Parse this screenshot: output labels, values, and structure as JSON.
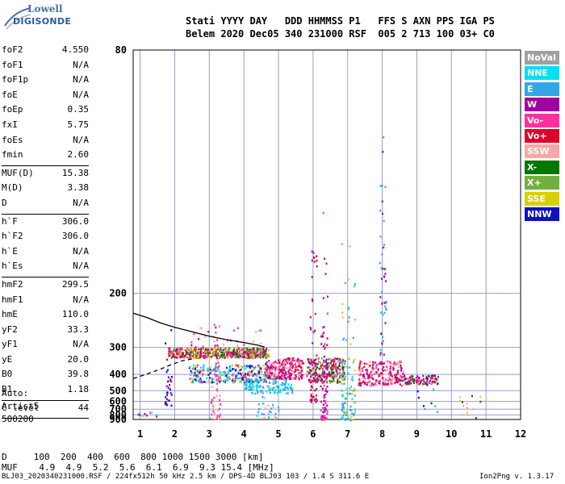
{
  "logo": {
    "line1": "Lowell",
    "line2": "DIGISONDE"
  },
  "header": {
    "labels": "Stati YYYY DAY   DDD HHMMSS P1   FFS S AXN PPS IGA PS",
    "values": "Belem 2020 Dec05 340 231000 RSF  005 2 713 100 03+ C0"
  },
  "params_group1": [
    {
      "name": "foF2",
      "value": "4.550"
    },
    {
      "name": "foF1",
      "value": "N/A"
    },
    {
      "name": "foF1p",
      "value": "N/A"
    },
    {
      "name": "foE",
      "value": "N/A"
    },
    {
      "name": "foEp",
      "value": "0.35"
    },
    {
      "name": "fxI",
      "value": "5.75"
    },
    {
      "name": "foEs",
      "value": "N/A"
    },
    {
      "name": "fmin",
      "value": "2.60"
    }
  ],
  "params_group2": [
    {
      "name": "MUF(D)",
      "value": "15.38"
    },
    {
      "name": "M(D)",
      "value": "3.38"
    },
    {
      "name": "D",
      "value": "N/A"
    }
  ],
  "params_group3": [
    {
      "name": "h`F",
      "value": "306.0"
    },
    {
      "name": "h`F2",
      "value": "306.0"
    },
    {
      "name": "h`E",
      "value": "N/A"
    },
    {
      "name": "h`Es",
      "value": "N/A"
    }
  ],
  "params_group4": [
    {
      "name": "hmF2",
      "value": "299.5"
    },
    {
      "name": "hmF1",
      "value": "N/A"
    },
    {
      "name": "hmE",
      "value": "110.0"
    },
    {
      "name": "yF2",
      "value": "33.3"
    },
    {
      "name": "yF1",
      "value": "N/A"
    },
    {
      "name": "yE",
      "value": "20.0"
    },
    {
      "name": "B0",
      "value": "39.8"
    },
    {
      "name": "B1",
      "value": "1.18"
    }
  ],
  "params_group5": [
    {
      "name": "C-level",
      "value": "44"
    }
  ],
  "auto_text": "Auto:\nArtist5\n500200",
  "legend": [
    {
      "label": "NoVal",
      "color": "#a0a0a0"
    },
    {
      "label": "NNE",
      "color": "#00e0f0"
    },
    {
      "label": "E",
      "color": "#30a8e8"
    },
    {
      "label": "W",
      "color": "#a000a0"
    },
    {
      "label": "Vo-",
      "color": "#ff30a0"
    },
    {
      "label": "Vo+",
      "color": "#e0002a"
    },
    {
      "label": "SSW",
      "color": "#f4a8a8"
    },
    {
      "label": "X-",
      "color": "#007800"
    },
    {
      "label": "X+",
      "color": "#70b040"
    },
    {
      "label": "SSE",
      "color": "#d8d000"
    },
    {
      "label": "NNW",
      "color": "#1010c0"
    }
  ],
  "footer": {
    "d_row": "D     100  200  400  600  800 1000 1500 3000 [km]",
    "muf_row": "MUF    4.9  4.9  5.2  5.6  6.1  6.9  9.3 15.4 [MHz]",
    "file_info": "BLJ03_2020340231000.RSF / 224fx512h 50 kHz 2.5 km / DPS-4D BLJ03 103 / 1.4 S 311.6 E",
    "version": "Ion2Png v. 1.3.17"
  },
  "chart_data": {
    "type": "scatter",
    "xlim": [
      0.8,
      12
    ],
    "ylim": [
      80,
      900
    ],
    "x_ticks": [
      "1",
      "2",
      "3",
      "4",
      "5",
      "6",
      "7",
      "8",
      "9",
      "10",
      "11",
      "12"
    ],
    "y_ticks": [
      "80",
      "200",
      "300",
      "400",
      "500",
      "600",
      "700",
      "800",
      "900"
    ],
    "y_tick_values": [
      80,
      200,
      300,
      400,
      500,
      600,
      700,
      800,
      900
    ],
    "y_scale": "reciprocal",
    "grid": true,
    "traces": [
      {
        "name": "profile",
        "style": "solid",
        "color": "#000000",
        "points": [
          [
            0.8,
            228
          ],
          [
            1.2,
            235
          ],
          [
            1.6,
            245
          ],
          [
            2.0,
            253
          ],
          [
            2.5,
            262
          ],
          [
            3.0,
            272
          ],
          [
            3.5,
            280
          ],
          [
            4.0,
            287
          ],
          [
            4.4,
            294
          ],
          [
            4.6,
            299
          ]
        ]
      },
      {
        "name": "trace",
        "style": "dashed",
        "color": "#000000",
        "points": [
          [
            0.8,
            422
          ],
          [
            1.2,
            398
          ],
          [
            1.6,
            375
          ],
          [
            1.9,
            357
          ],
          [
            2.2,
            343
          ],
          [
            2.5,
            336
          ]
        ]
      }
    ],
    "echo_regions": [
      {
        "x0": 1.8,
        "x1": 4.7,
        "y0": 300,
        "y1": 330,
        "density": 520,
        "colors": [
          "#e0002a",
          "#ff30a0",
          "#a000a0",
          "#007800",
          "#d8d000",
          "#70b040"
        ]
      },
      {
        "x0": 2.4,
        "x1": 4.7,
        "y0": 355,
        "y1": 440,
        "density": 320,
        "colors": [
          "#30a8e8",
          "#00e0f0",
          "#1010c0",
          "#d8d000",
          "#ff30a0"
        ]
      },
      {
        "x0": 4.6,
        "x1": 5.7,
        "y0": 330,
        "y1": 420,
        "density": 260,
        "colors": [
          "#e0002a",
          "#ff30a0",
          "#a000a0",
          "#f4a8a8"
        ]
      },
      {
        "x0": 5.8,
        "x1": 6.9,
        "y0": 330,
        "y1": 440,
        "density": 240,
        "colors": [
          "#e0002a",
          "#ff30a0",
          "#a000a0",
          "#007800",
          "#70b040"
        ]
      },
      {
        "x0": 7.3,
        "x1": 8.6,
        "y0": 340,
        "y1": 460,
        "density": 220,
        "colors": [
          "#e0002a",
          "#ff30a0",
          "#a000a0",
          "#f4a8a8"
        ]
      },
      {
        "x0": 8.6,
        "x1": 9.6,
        "y0": 400,
        "y1": 450,
        "density": 90,
        "colors": [
          "#e0002a",
          "#ff30a0",
          "#a000a0",
          "#007800"
        ]
      },
      {
        "x0": 4.0,
        "x1": 5.4,
        "y0": 420,
        "y1": 520,
        "density": 110,
        "colors": [
          "#30a8e8",
          "#00e0f0"
        ]
      },
      {
        "x0": 6.8,
        "x1": 7.2,
        "y0": 150,
        "y1": 900,
        "density": 110,
        "colors": [
          "#30a8e8",
          "#00e0f0",
          "#d8d000"
        ]
      },
      {
        "x0": 6.2,
        "x1": 6.4,
        "y0": 120,
        "y1": 900,
        "density": 90,
        "colors": [
          "#a000a0",
          "#ff30a0"
        ]
      },
      {
        "x0": 5.9,
        "x1": 6.1,
        "y0": 150,
        "y1": 600,
        "density": 50,
        "colors": [
          "#a000a0",
          "#e0002a"
        ]
      },
      {
        "x0": 3.0,
        "x1": 3.3,
        "y0": 240,
        "y1": 900,
        "density": 50,
        "colors": [
          "#f4a8a8",
          "#ff30a0"
        ]
      },
      {
        "x0": 7.9,
        "x1": 8.1,
        "y0": 100,
        "y1": 330,
        "density": 45,
        "colors": [
          "#30a8e8",
          "#a000a0"
        ]
      },
      {
        "x0": 1.7,
        "x1": 1.9,
        "y0": 250,
        "y1": 650,
        "density": 30,
        "colors": [
          "#a000a0",
          "#1010c0"
        ]
      },
      {
        "x0": 4.3,
        "x1": 5.0,
        "y0": 380,
        "y1": 900,
        "density": 40,
        "colors": [
          "#30a8e8",
          "#00e0f0",
          "#f4a8a8"
        ]
      },
      {
        "x0": 0.9,
        "x1": 1.5,
        "y0": 740,
        "y1": 850,
        "density": 12,
        "colors": [
          "#30a8e8",
          "#f4a8a8",
          "#a000a0"
        ]
      },
      {
        "x0": 10.2,
        "x1": 11.2,
        "y0": 500,
        "y1": 880,
        "density": 14,
        "colors": [
          "#f4a8a8",
          "#007800",
          "#d8d000"
        ]
      },
      {
        "x0": 9.0,
        "x1": 9.6,
        "y0": 380,
        "y1": 800,
        "density": 10,
        "colors": [
          "#1010c0",
          "#30a8e8"
        ]
      },
      {
        "x0": 2.3,
        "x1": 4.6,
        "y0": 250,
        "y1": 300,
        "density": 30,
        "colors": [
          "#e0002a",
          "#ff30a0",
          "#f4a8a8"
        ]
      }
    ]
  }
}
